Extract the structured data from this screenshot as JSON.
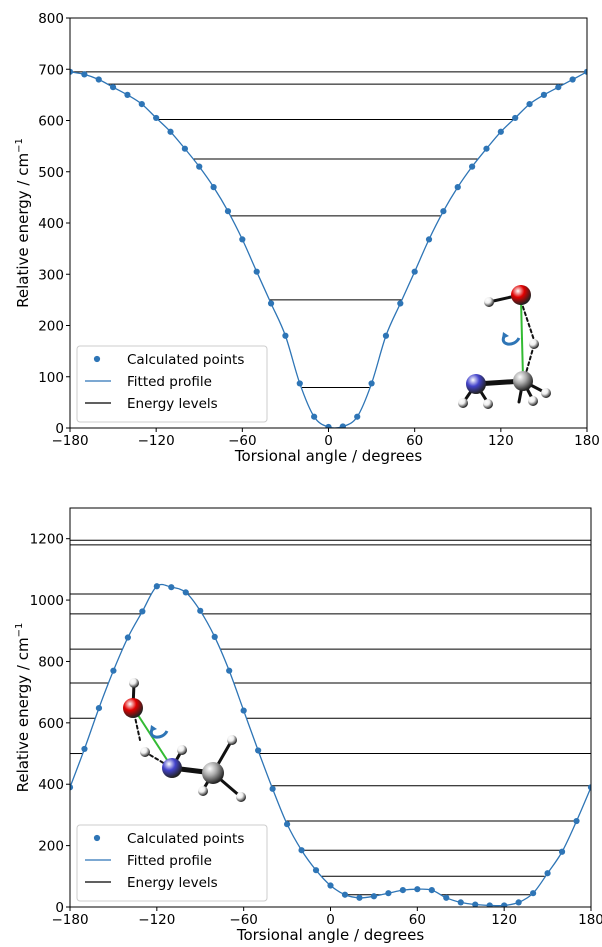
{
  "chart_data": [
    {
      "type": "line",
      "xlabel": "Torsional angle / degrees",
      "ylabel": "Relative energy / cm",
      "ylabel_superscript": "−1",
      "xlim": [
        -180,
        180
      ],
      "ylim": [
        0,
        800
      ],
      "xticks": [
        -180,
        -120,
        -60,
        0,
        60,
        120,
        180
      ],
      "xtick_labels": [
        "−180",
        "−120",
        "−60",
        "0",
        "60",
        "120",
        "180"
      ],
      "yticks": [
        0,
        100,
        200,
        300,
        400,
        500,
        600,
        700,
        800
      ],
      "ytick_labels": [
        "0",
        "100",
        "200",
        "300",
        "400",
        "500",
        "600",
        "700",
        "800"
      ],
      "grid": false,
      "legend_position": "lower-left",
      "legend": [
        "Calculated points",
        "Fitted profile",
        "Energy levels"
      ],
      "series": [
        {
          "name": "Calculated points",
          "x": [
            -180,
            -170,
            -160,
            -150,
            -140,
            -130,
            -120,
            -110,
            -100,
            -90,
            -80,
            -70,
            -60,
            -50,
            -40,
            -30,
            -20,
            -10,
            0,
            10,
            20,
            30,
            40,
            50,
            60,
            70,
            80,
            90,
            100,
            110,
            120,
            130,
            140,
            150,
            160,
            170,
            180
          ],
          "y": [
            695,
            690,
            680,
            665,
            650,
            632,
            605,
            578,
            545,
            510,
            470,
            423,
            368,
            305,
            243,
            180,
            87,
            22,
            2,
            3,
            22,
            87,
            180,
            243,
            305,
            368,
            423,
            470,
            510,
            545,
            578,
            605,
            632,
            650,
            665,
            680,
            695
          ]
        },
        {
          "name": "Fitted profile",
          "x": [
            -180,
            -170,
            -160,
            -150,
            -140,
            -130,
            -120,
            -110,
            -100,
            -90,
            -80,
            -70,
            -60,
            -50,
            -40,
            -30,
            -20,
            -10,
            0,
            10,
            20,
            30,
            40,
            50,
            60,
            70,
            80,
            90,
            100,
            110,
            120,
            130,
            140,
            150,
            160,
            170,
            180
          ],
          "y": [
            695,
            690,
            680,
            665,
            650,
            632,
            605,
            578,
            545,
            510,
            470,
            423,
            368,
            305,
            243,
            180,
            87,
            22,
            2,
            3,
            22,
            87,
            180,
            243,
            305,
            368,
            423,
            470,
            510,
            545,
            578,
            605,
            632,
            650,
            665,
            680,
            695
          ]
        }
      ],
      "energy_levels": [
        79,
        250,
        414,
        525,
        602,
        671,
        695
      ]
    },
    {
      "type": "line",
      "xlabel": "Torsional angle / degrees",
      "ylabel": "Relative energy / cm",
      "ylabel_superscript": "−1",
      "xlim": [
        -180,
        180
      ],
      "ylim": [
        0,
        1300
      ],
      "xticks": [
        -180,
        -120,
        -60,
        0,
        60,
        120,
        180
      ],
      "xtick_labels": [
        "−180",
        "−120",
        "−60",
        "0",
        "60",
        "120",
        "180"
      ],
      "yticks": [
        0,
        200,
        400,
        600,
        800,
        1000,
        1200
      ],
      "ytick_labels": [
        "0",
        "200",
        "400",
        "600",
        "800",
        "1000",
        "1200"
      ],
      "grid": false,
      "legend_position": "lower-left",
      "legend": [
        "Calculated points",
        "Fitted profile",
        "Energy levels"
      ],
      "series": [
        {
          "name": "Calculated points",
          "x": [
            -180,
            -170,
            -160,
            -150,
            -140,
            -130,
            -120,
            -110,
            -100,
            -90,
            -80,
            -70,
            -60,
            -50,
            -40,
            -30,
            -20,
            -10,
            0,
            10,
            20,
            30,
            40,
            50,
            60,
            70,
            80,
            90,
            100,
            110,
            120,
            130,
            140,
            150,
            160,
            170,
            180
          ],
          "y": [
            390,
            515,
            648,
            770,
            878,
            963,
            1045,
            1042,
            1025,
            965,
            880,
            770,
            640,
            510,
            385,
            270,
            185,
            120,
            70,
            40,
            30,
            35,
            45,
            55,
            58,
            55,
            30,
            15,
            8,
            5,
            5,
            15,
            45,
            110,
            180,
            280,
            390
          ]
        },
        {
          "name": "Fitted profile",
          "x": [
            -180,
            -170,
            -160,
            -150,
            -140,
            -130,
            -120,
            -110,
            -100,
            -90,
            -80,
            -70,
            -60,
            -50,
            -40,
            -30,
            -20,
            -10,
            0,
            10,
            20,
            30,
            40,
            50,
            60,
            70,
            80,
            90,
            100,
            110,
            120,
            130,
            140,
            150,
            160,
            170,
            180
          ],
          "y": [
            390,
            515,
            648,
            770,
            878,
            963,
            1045,
            1042,
            1025,
            965,
            880,
            770,
            640,
            510,
            385,
            270,
            185,
            120,
            70,
            40,
            30,
            35,
            45,
            55,
            58,
            55,
            30,
            15,
            8,
            5,
            5,
            15,
            45,
            110,
            180,
            280,
            390
          ]
        }
      ],
      "energy_levels": [
        40,
        100,
        185,
        280,
        395,
        500,
        615,
        730,
        840,
        955,
        1020,
        1180,
        1195
      ]
    }
  ],
  "colors": {
    "points": "#2e75b6",
    "fit": "#2e75b6",
    "levels": "#000000",
    "axes": "#000000",
    "bond_green": "#33bb33",
    "torsion_arrow": "#2e75b6",
    "atom_oxygen": "#e00000",
    "atom_nitrogen": "#4444cc",
    "atom_carbon": "#aaaaaa",
    "atom_hydrogen": "#eeeeee"
  }
}
